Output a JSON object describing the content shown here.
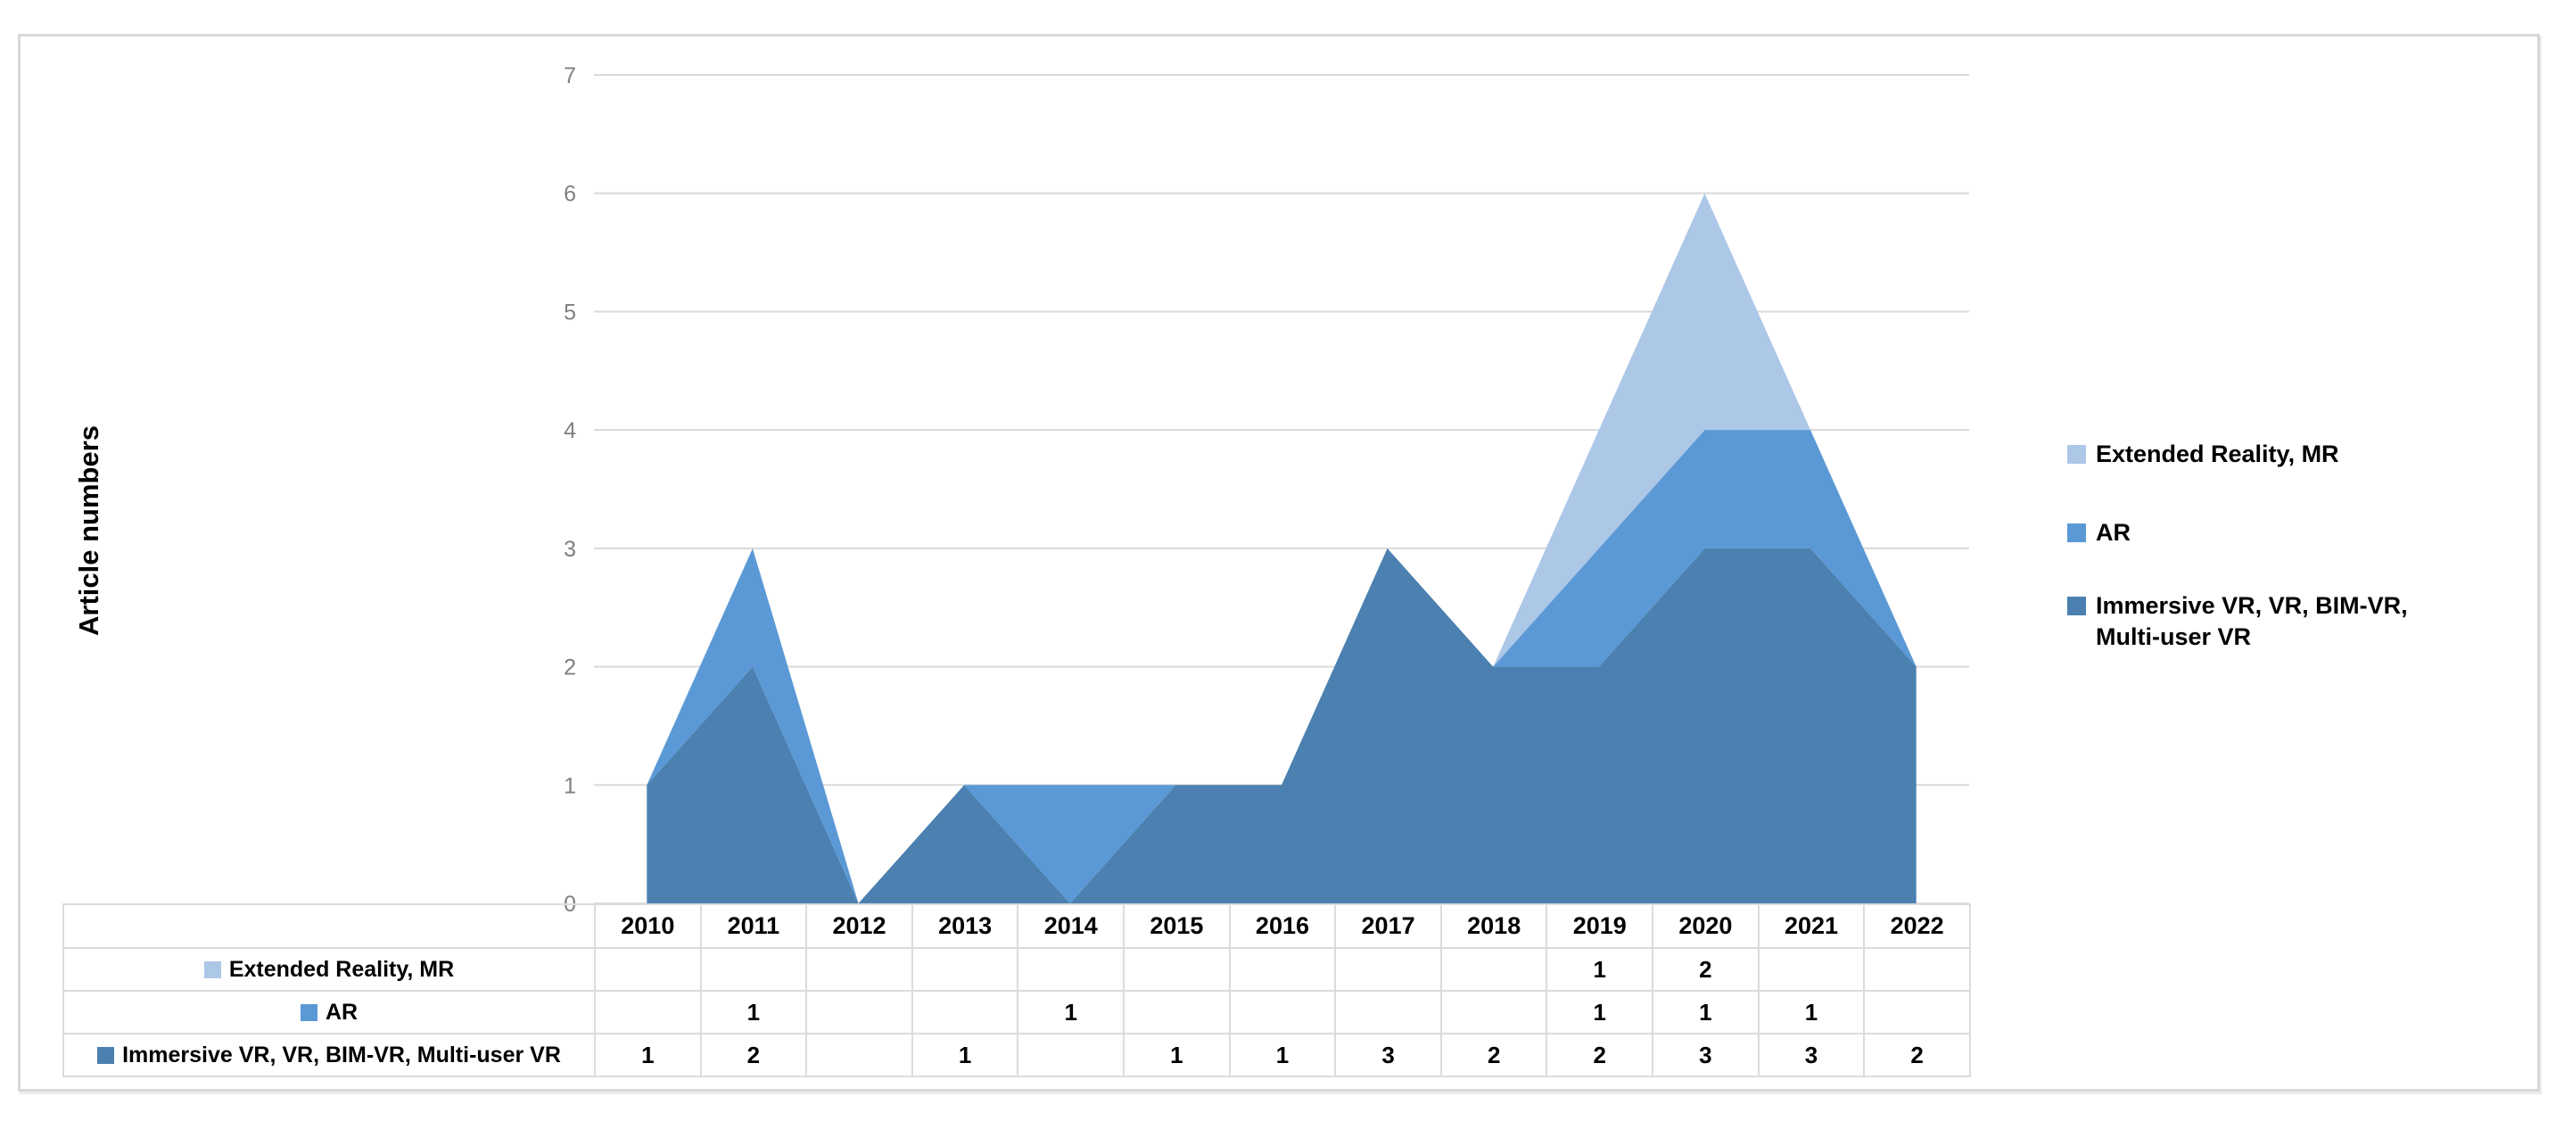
{
  "figure": {
    "y_axis_title": "Article numbers",
    "y_ticks": [
      0,
      1,
      2,
      3,
      4,
      5,
      6,
      7
    ]
  },
  "colors": {
    "extended_reality_mr": "#adc7e7",
    "ar": "#5b99d6",
    "immersive_vr": "#4b80b0",
    "gridline": "#d9d9d9",
    "tick_text": "#7f7f7f",
    "table_border": "#dcdcdc"
  },
  "chart_data": {
    "type": "area",
    "stacked": true,
    "title": "",
    "xlabel": "",
    "ylabel": "Article numbers",
    "ylim": [
      0,
      7
    ],
    "grid": true,
    "legend_position": "right",
    "categories": [
      "2010",
      "2011",
      "2012",
      "2013",
      "2014",
      "2015",
      "2016",
      "2017",
      "2018",
      "2019",
      "2020",
      "2021",
      "2022"
    ],
    "series": [
      {
        "name": "Immersive VR, VR, BIM-VR, Multi-user VR",
        "color": "#4b80b0",
        "values": [
          1,
          2,
          0,
          1,
          0,
          1,
          1,
          3,
          2,
          2,
          3,
          3,
          2
        ]
      },
      {
        "name": "AR",
        "color": "#5b99d6",
        "values": [
          0,
          1,
          0,
          0,
          1,
          0,
          0,
          0,
          0,
          1,
          1,
          1,
          0
        ]
      },
      {
        "name": "Extended Reality, MR",
        "color": "#adc7e7",
        "values": [
          0,
          0,
          0,
          0,
          0,
          0,
          0,
          0,
          0,
          1,
          2,
          0,
          0
        ]
      }
    ]
  },
  "legend": {
    "items": [
      {
        "label": "Extended Reality, MR",
        "color": "#adc7e7"
      },
      {
        "label": "AR",
        "color": "#5b99d6"
      },
      {
        "label": "Immersive VR, VR, BIM-VR, Multi-user VR",
        "color": "#4b80b0"
      }
    ]
  },
  "table": {
    "rows": [
      {
        "label": "Extended Reality, MR",
        "color": "#adc7e7",
        "cells": [
          "",
          "",
          "",
          "",
          "",
          "",
          "",
          "",
          "",
          "1",
          "2",
          "",
          ""
        ]
      },
      {
        "label": "AR",
        "color": "#5b99d6",
        "cells": [
          "",
          "1",
          "",
          "",
          "1",
          "",
          "",
          "",
          "",
          "1",
          "1",
          "1",
          ""
        ]
      },
      {
        "label": "Immersive VR, VR, BIM-VR, Multi-user VR",
        "color": "#4b80b0",
        "cells": [
          "1",
          "2",
          "",
          "1",
          "",
          "1",
          "1",
          "3",
          "2",
          "2",
          "3",
          "3",
          "2"
        ]
      }
    ]
  }
}
